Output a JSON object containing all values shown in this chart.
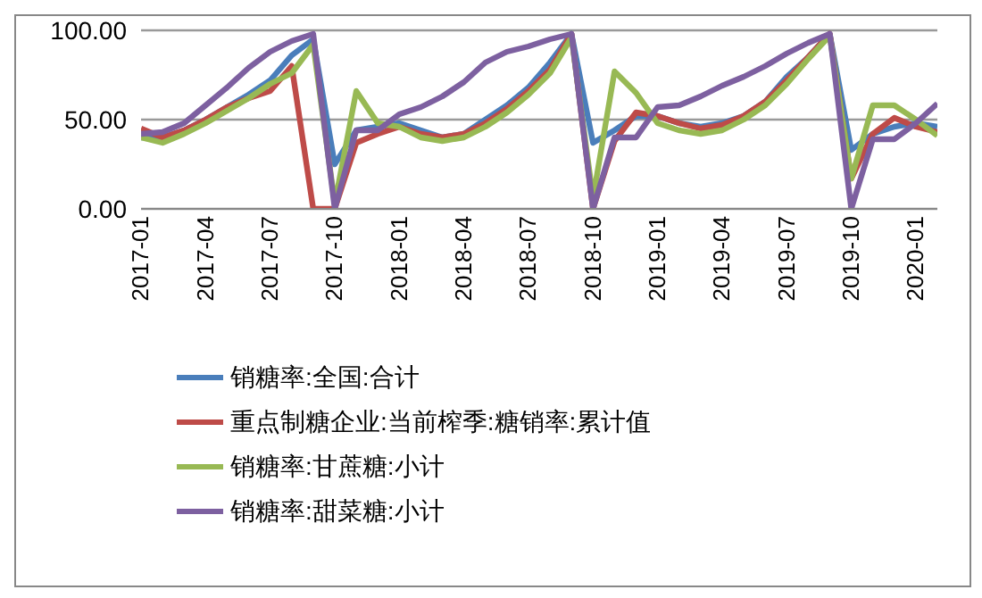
{
  "chart_data": {
    "type": "line",
    "x": [
      "2017-01",
      "2017-02",
      "2017-03",
      "2017-04",
      "2017-05",
      "2017-06",
      "2017-07",
      "2017-08",
      "2017-09",
      "2017-10",
      "2017-11",
      "2017-12",
      "2018-01",
      "2018-02",
      "2018-03",
      "2018-04",
      "2018-05",
      "2018-06",
      "2018-07",
      "2018-08",
      "2018-09",
      "2018-10",
      "2018-11",
      "2018-12",
      "2019-01",
      "2019-02",
      "2019-03",
      "2019-04",
      "2019-05",
      "2019-06",
      "2019-07",
      "2019-08",
      "2019-09",
      "2019-10",
      "2019-11",
      "2019-12",
      "2020-01",
      "2020-02"
    ],
    "series": [
      {
        "name": "销糖率:全国:合计",
        "color": "#4a7ebb",
        "values": [
          40,
          40,
          44,
          50,
          57,
          64,
          72,
          86,
          95,
          25,
          44,
          46,
          48,
          44,
          40,
          42,
          50,
          58,
          68,
          82,
          98,
          37,
          44,
          52,
          52,
          48,
          46,
          48,
          52,
          60,
          74,
          85,
          98,
          33,
          42,
          46,
          48,
          46
        ]
      },
      {
        "name": "重点制糖企业:当前榨季:糖销率:累计值",
        "color": "#be4b48",
        "values": [
          45,
          40,
          44,
          50,
          57,
          62,
          66,
          80,
          0,
          0,
          37,
          42,
          46,
          42,
          40,
          42,
          48,
          56,
          66,
          78,
          98,
          0,
          38,
          54,
          52,
          48,
          45,
          47,
          52,
          60,
          72,
          85,
          98,
          17,
          42,
          51,
          46,
          43
        ]
      },
      {
        "name": "销糖率:甘蔗糖:小计",
        "color": "#98b954",
        "values": [
          40,
          37,
          42,
          48,
          55,
          62,
          70,
          76,
          92,
          3,
          66,
          48,
          46,
          40,
          38,
          40,
          46,
          54,
          64,
          76,
          96,
          6,
          77,
          65,
          48,
          44,
          42,
          44,
          50,
          58,
          70,
          84,
          97,
          17,
          58,
          58,
          50,
          41
        ]
      },
      {
        "name": "销糖率:甜菜糖:小计",
        "color": "#7d60a0",
        "values": [
          42,
          43,
          48,
          58,
          68,
          79,
          88,
          94,
          98,
          0,
          44,
          44,
          53,
          57,
          63,
          71,
          82,
          88,
          91,
          95,
          98,
          0,
          40,
          40,
          57,
          58,
          63,
          69,
          74,
          80,
          87,
          93,
          98,
          0,
          39,
          39,
          48,
          59
        ]
      }
    ],
    "xlim": [
      "2017-01",
      "2020-02"
    ],
    "xticks": [
      "2017-01",
      "2017-04",
      "2017-07",
      "2017-10",
      "2018-01",
      "2018-04",
      "2018-07",
      "2018-10",
      "2019-01",
      "2019-04",
      "2019-07",
      "2019-10",
      "2020-01"
    ],
    "ylim": [
      0,
      100
    ],
    "yticks": [
      {
        "value": 0,
        "label": "0.00"
      },
      {
        "value": 50,
        "label": "50.00"
      },
      {
        "value": 100,
        "label": "100.00"
      }
    ],
    "grid": "y",
    "legend": "bottom",
    "marker": "none",
    "line_style": "solid"
  }
}
